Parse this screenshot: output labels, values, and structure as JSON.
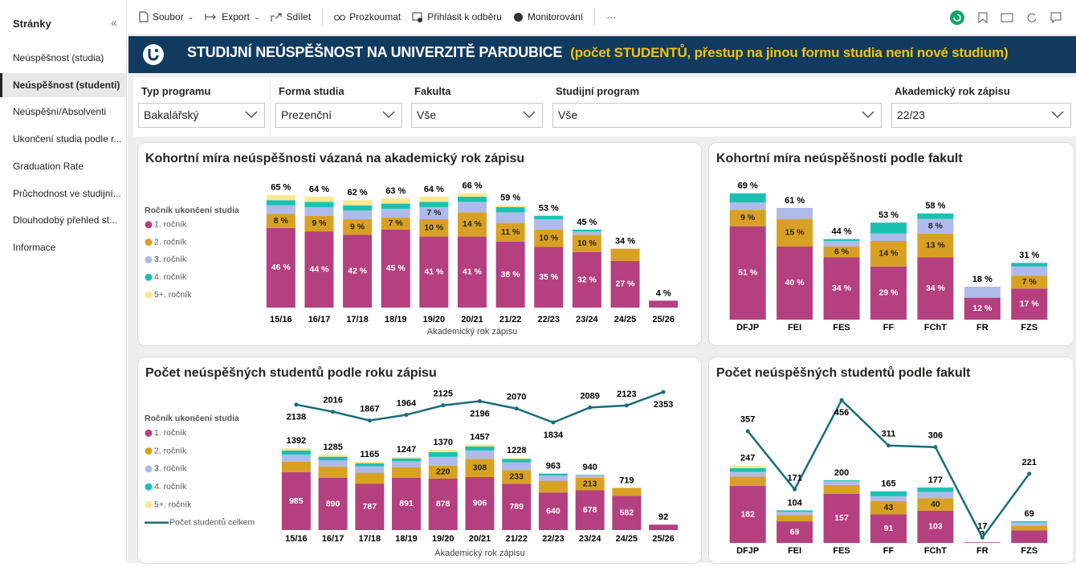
{
  "sidebar": {
    "title": "Stránky",
    "collapse": "«",
    "selected": 1,
    "items": [
      "Neúspěšnost (studia)",
      "Neúspěšnost (studenti)",
      "Neúspěšní/Absolventi",
      "Ukončení studia podle r...",
      "Graduation Rate",
      "Průchodnost ve studijní...",
      "Dlouhodobý přehled st...",
      "Informace"
    ]
  },
  "toolbar": {
    "items": [
      "Soubor",
      "Export",
      "Sdílet",
      "Prozkoumat",
      "Přihlásit k odběru",
      "Monitorování"
    ],
    "more": "···"
  },
  "banner": {
    "title": "STUDIJNÍ NEÚSPĚŠNOST NA UNIVERZITĚ PARDUBICE",
    "subtitle": "(počet STUDENTŮ, přestup na jinou formu studia není nové studium)"
  },
  "filters": [
    {
      "label": "Typ programu",
      "value": "Bakalářský"
    },
    {
      "label": "Forma studia",
      "value": "Prezenční"
    },
    {
      "label": "Fakulta",
      "value": "Vše"
    },
    {
      "label": "Studijní program",
      "value": "Vše"
    },
    {
      "label": "Akademický rok zápisu",
      "value": "22/23"
    }
  ],
  "chart_data": [
    {
      "type": "stacked_bar",
      "title": "Kohortní míra neúspěšnosti vázaná na akademický rok zápisu",
      "x_label": "Akademický rok zápisu",
      "legend_title": "Ročník ukončení studia",
      "categories": [
        "15/16",
        "16/17",
        "17/18",
        "18/19",
        "19/20",
        "20/21",
        "21/22",
        "22/23",
        "23/24",
        "24/25",
        "25/26"
      ],
      "ylim": [
        0,
        70
      ],
      "series": [
        {
          "name": "1. ročník",
          "color": "#b4407f",
          "values": [
            46,
            44,
            42,
            45,
            41,
            41,
            38,
            35,
            32,
            27,
            4
          ],
          "value_labels": [
            "46 %",
            "44 %",
            "42 %",
            "45 %",
            "41 %",
            "41 %",
            "38 %",
            "35 %",
            "32 %",
            "27 %",
            null
          ]
        },
        {
          "name": "2. ročník",
          "color": "#d9a124",
          "values": [
            8,
            9,
            9,
            7,
            10,
            14,
            11,
            10,
            10,
            7,
            0
          ],
          "value_labels": [
            "8 %",
            "9 %",
            "9 %",
            "7 %",
            "10 %",
            "14 %",
            "11 %",
            "10 %",
            "10 %",
            null,
            null
          ]
        },
        {
          "name": "3. ročník",
          "color": "#aebbea",
          "values": [
            5,
            5,
            5,
            5,
            7,
            6,
            6,
            6,
            2,
            0,
            0
          ],
          "value_labels": [
            null,
            null,
            null,
            null,
            "7 %",
            null,
            null,
            null,
            null,
            null,
            null
          ]
        },
        {
          "name": "4. ročník",
          "color": "#1cc0b2",
          "values": [
            3,
            3,
            3,
            3,
            3,
            3,
            3,
            2,
            1,
            0,
            0
          ]
        },
        {
          "name": "5+. ročník",
          "color": "#fde78f",
          "values": [
            3,
            3,
            3,
            3,
            3,
            2,
            1,
            0,
            0,
            0,
            0
          ]
        }
      ],
      "totals": [
        65,
        64,
        62,
        63,
        64,
        66,
        59,
        53,
        45,
        34,
        4
      ],
      "totals_labels": [
        "65 %",
        "64 %",
        "62 %",
        "63 %",
        "64 %",
        "66 %",
        "59 %",
        "53 %",
        "45 %",
        "34 %",
        "4 %"
      ]
    },
    {
      "type": "stacked_bar",
      "title": "Kohortní míra neúspěšnosti podle fakult",
      "categories": [
        "DFJP",
        "FEI",
        "FES",
        "FF",
        "FChT",
        "FR",
        "FZS"
      ],
      "ylim": [
        0,
        75
      ],
      "series": [
        {
          "name": "1. ročník",
          "color": "#b4407f",
          "values": [
            51,
            40,
            34,
            29,
            34,
            12,
            17
          ],
          "value_labels": [
            "51 %",
            "40 %",
            "34 %",
            "29 %",
            "34 %",
            "12 %",
            "17 %"
          ]
        },
        {
          "name": "2. ročník",
          "color": "#d9a124",
          "values": [
            9,
            15,
            6,
            14,
            13,
            0,
            7
          ],
          "value_labels": [
            "9 %",
            "15 %",
            "6 %",
            "14 %",
            "13 %",
            null,
            "7 %"
          ]
        },
        {
          "name": "3. ročník",
          "color": "#aebbea",
          "values": [
            4,
            6,
            3,
            4,
            8,
            6,
            5
          ],
          "value_labels": [
            null,
            null,
            null,
            null,
            "8 %",
            null,
            null
          ]
        },
        {
          "name": "4. ročník",
          "color": "#1cc0b2",
          "values": [
            5,
            0,
            1,
            6,
            3,
            0,
            2
          ]
        },
        {
          "name": "5+. ročník",
          "color": "#fde78f",
          "values": [
            0,
            0,
            0,
            0,
            0,
            0,
            0
          ]
        }
      ],
      "totals": [
        69,
        61,
        44,
        53,
        58,
        18,
        31
      ],
      "totals_labels": [
        "69 %",
        "61 %",
        "44 %",
        "53 %",
        "58 %",
        "18 %",
        "31 %"
      ]
    },
    {
      "type": "stacked_bar_line",
      "title": "Počet neúspěšných studentů podle roku zápisu",
      "x_label": "Akademický rok zápisu",
      "legend_title": "Ročník ukončení studia",
      "categories": [
        "15/16",
        "16/17",
        "17/18",
        "18/19",
        "19/20",
        "20/21",
        "21/22",
        "22/23",
        "23/24",
        "24/25",
        "25/26"
      ],
      "ylim": [
        0,
        2450
      ],
      "series": [
        {
          "name": "1. ročník",
          "color": "#b4407f",
          "values": [
            985,
            890,
            787,
            891,
            878,
            906,
            789,
            640,
            678,
            582,
            92
          ],
          "value_labels": [
            "985",
            "890",
            "787",
            "891",
            "878",
            "906",
            "789",
            "640",
            "678",
            "582",
            null
          ]
        },
        {
          "name": "2. ročník",
          "color": "#d9a124",
          "values": [
            180,
            190,
            190,
            180,
            220,
            308,
            233,
            200,
            213,
            137,
            0
          ],
          "value_labels": [
            null,
            null,
            null,
            null,
            "220",
            "308",
            "233",
            null,
            "213",
            null,
            null
          ]
        },
        {
          "name": "3. ročník",
          "color": "#aebbea",
          "values": [
            120,
            110,
            110,
            100,
            150,
            140,
            130,
            90,
            40,
            0,
            0
          ]
        },
        {
          "name": "4. ročník",
          "color": "#1cc0b2",
          "values": [
            70,
            60,
            50,
            50,
            80,
            70,
            60,
            33,
            9,
            0,
            0
          ]
        },
        {
          "name": "5+. ročník",
          "color": "#fde78f",
          "values": [
            37,
            35,
            28,
            26,
            42,
            33,
            16,
            0,
            0,
            0,
            0
          ]
        },
        {
          "name": "Počet studentů celkem",
          "type": "line",
          "color": "#1b6d78",
          "values": [
            2138,
            2016,
            1867,
            1964,
            2125,
            2196,
            2070,
            1834,
            2089,
            2123,
            2353
          ]
        }
      ],
      "totals": [
        1392,
        1285,
        1165,
        1247,
        1370,
        1457,
        1228,
        963,
        940,
        719,
        92
      ]
    },
    {
      "type": "stacked_bar_line",
      "title": "Počet neúspěšných studentů podle fakult",
      "categories": [
        "DFJP",
        "FEI",
        "FES",
        "FF",
        "FChT",
        "FR",
        "FZS"
      ],
      "ylim": [
        0,
        490
      ],
      "series": [
        {
          "name": "1. ročník",
          "color": "#b4407f",
          "values": [
            182,
            69,
            157,
            91,
            103,
            2,
            40
          ],
          "value_labels": [
            "182",
            "69",
            "157",
            "91",
            "103",
            null,
            null
          ]
        },
        {
          "name": "2. ročník",
          "color": "#d9a124",
          "values": [
            30,
            20,
            28,
            43,
            40,
            0,
            15
          ],
          "value_labels": [
            null,
            null,
            null,
            "43",
            "40",
            null,
            null
          ]
        },
        {
          "name": "3. ročník",
          "color": "#aebbea",
          "values": [
            15,
            10,
            12,
            15,
            20,
            1,
            10
          ]
        },
        {
          "name": "4. ročník",
          "color": "#1cc0b2",
          "values": [
            12,
            5,
            3,
            16,
            14,
            0,
            4
          ]
        },
        {
          "name": "5+. ročník",
          "color": "#fde78f",
          "values": [
            8,
            0,
            0,
            0,
            0,
            0,
            0
          ]
        },
        {
          "name": "Počet studentů celkem",
          "type": "line",
          "color": "#1b6d78",
          "values": [
            357,
            171,
            456,
            311,
            306,
            17,
            221
          ]
        }
      ],
      "totals": [
        247,
        104,
        200,
        165,
        177,
        3,
        69
      ]
    }
  ]
}
